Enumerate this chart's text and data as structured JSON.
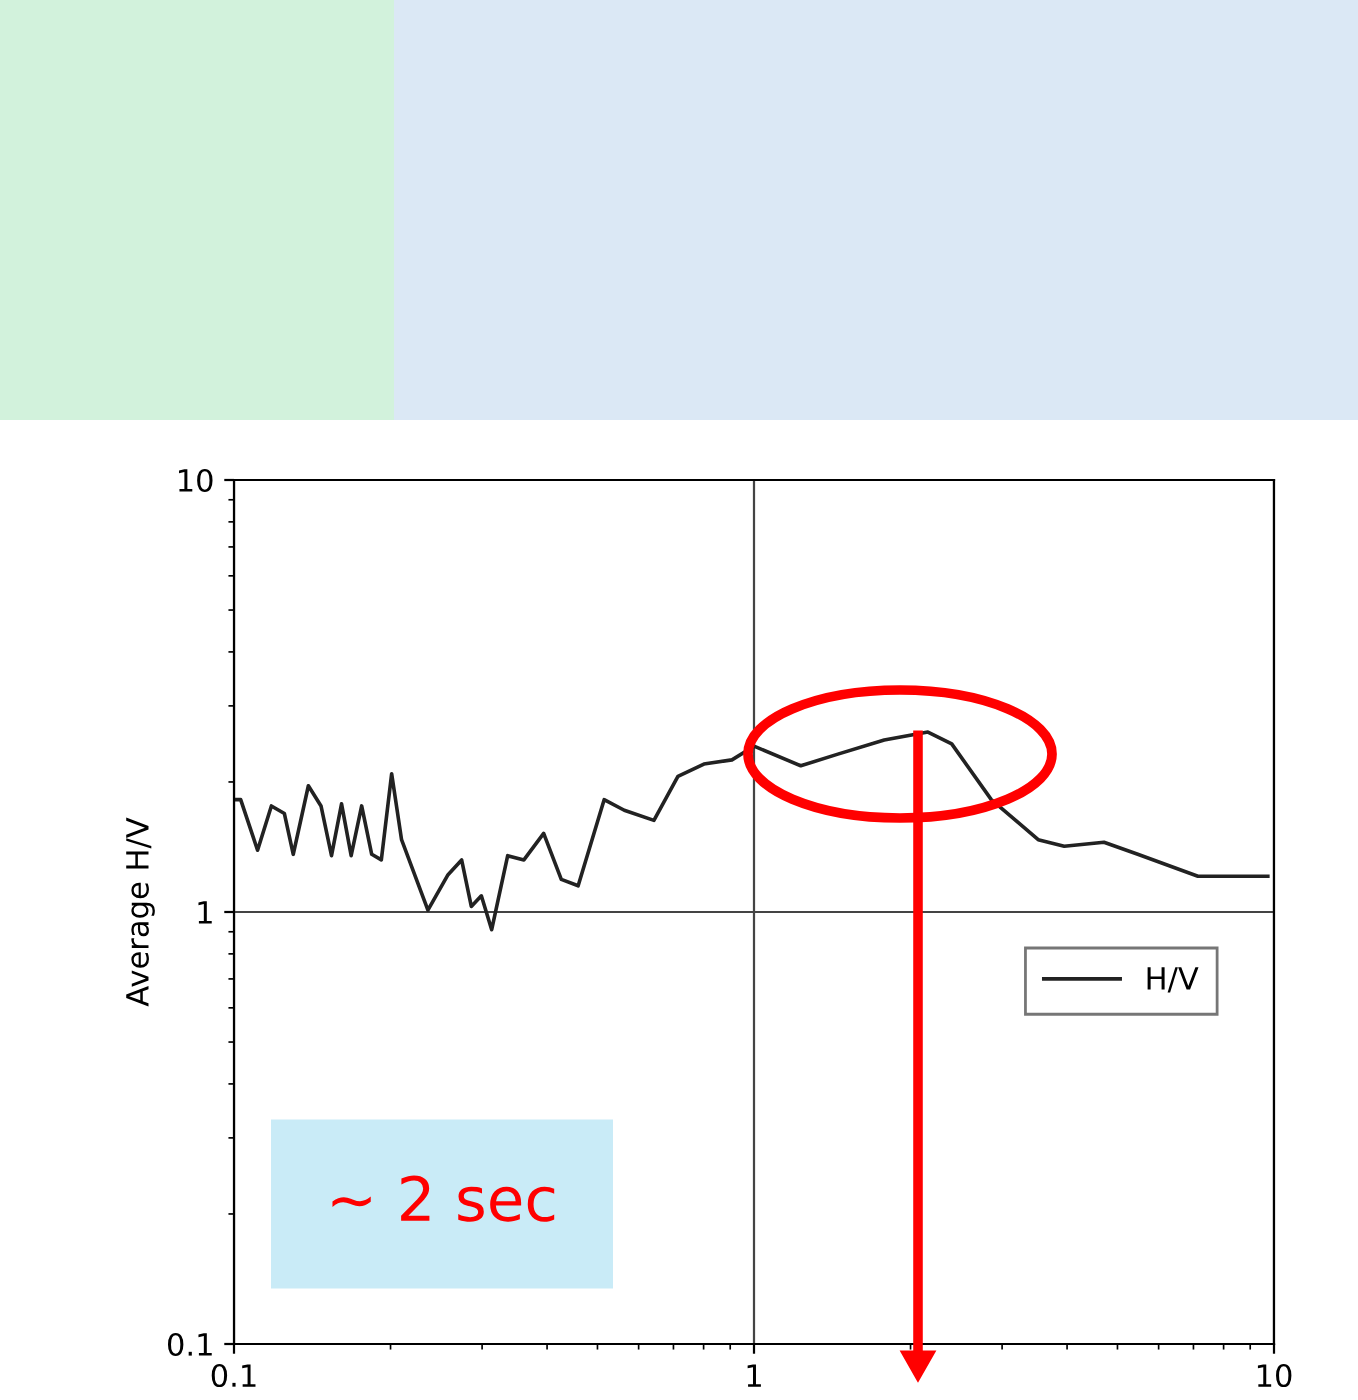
{
  "chart_data": {
    "type": "line",
    "ylabel": "Average H/V",
    "x": [
      0.1,
      0.103,
      0.111,
      0.118,
      0.125,
      0.13,
      0.139,
      0.147,
      0.154,
      0.161,
      0.168,
      0.176,
      0.184,
      0.192,
      0.201,
      0.21,
      0.236,
      0.258,
      0.274,
      0.286,
      0.299,
      0.313,
      0.336,
      0.361,
      0.394,
      0.426,
      0.459,
      0.515,
      0.563,
      0.642,
      0.714,
      0.801,
      0.907,
      1.0,
      1.23,
      1.45,
      1.78,
      2.16,
      2.4,
      2.86,
      3.52,
      3.95,
      4.71,
      5.47,
      7.14,
      9.73
    ],
    "series": [
      {
        "name": "H/V",
        "color": "#222222",
        "values": [
          1.82,
          1.82,
          1.39,
          1.76,
          1.69,
          1.36,
          1.96,
          1.76,
          1.35,
          1.78,
          1.35,
          1.76,
          1.36,
          1.32,
          2.09,
          1.47,
          1.01,
          1.22,
          1.32,
          1.03,
          1.09,
          0.91,
          1.35,
          1.32,
          1.52,
          1.19,
          1.15,
          1.82,
          1.72,
          1.63,
          2.06,
          2.2,
          2.25,
          2.42,
          2.18,
          2.32,
          2.5,
          2.61,
          2.45,
          1.82,
          1.47,
          1.42,
          1.45,
          1.36,
          1.21,
          1.21
        ]
      }
    ],
    "log": "xy",
    "xlim": [
      0.1,
      10
    ],
    "ylim": [
      0.1,
      10
    ],
    "xticks": [
      0.1,
      1,
      10
    ],
    "yticks": [
      0.1,
      1,
      10
    ],
    "grid": true,
    "legend": "bottom right",
    "marker": "none",
    "line_style": "solid",
    "annotations": [
      "~ 2 sec"
    ]
  }
}
